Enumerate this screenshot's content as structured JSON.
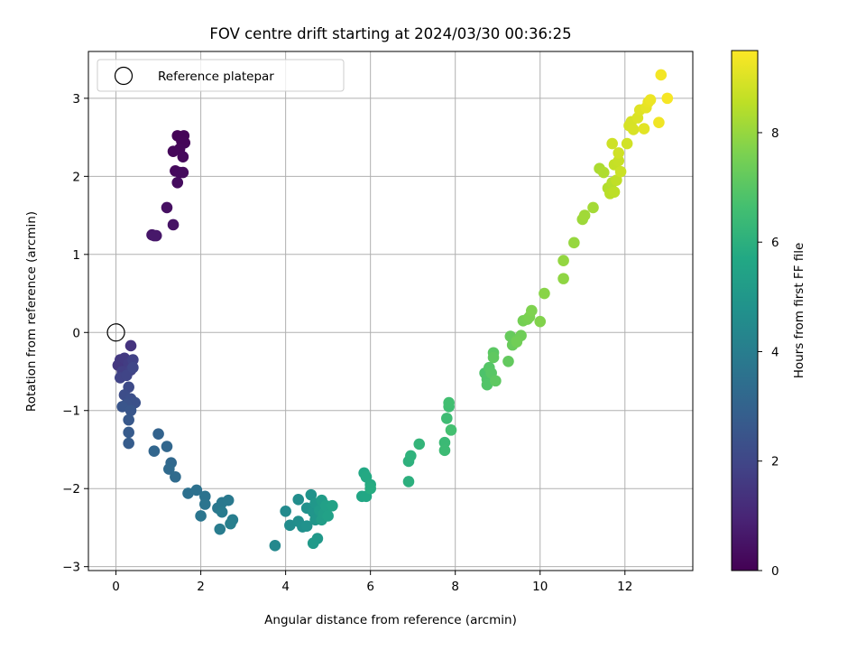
{
  "chart_data": {
    "type": "scatter",
    "title": "FOV centre drift starting at 2024/03/30 00:36:25",
    "xlabel": "Angular distance from reference (arcmin)",
    "ylabel": "Rotation from reference (arcmin)",
    "xlim": [
      -0.65,
      13.6
    ],
    "ylim": [
      -3.05,
      3.6
    ],
    "xticks": [
      0,
      2,
      4,
      6,
      8,
      10,
      12
    ],
    "yticks": [
      -3,
      -2,
      -1,
      0,
      1,
      2,
      3
    ],
    "grid": true,
    "legend": {
      "position": "top-left",
      "entries": [
        {
          "label": "Reference platepar",
          "marker": "open-circle",
          "x": 0,
          "y": 0
        }
      ]
    },
    "colorbar": {
      "label": "Hours from first FF file",
      "range": [
        0,
        9.5
      ],
      "ticks": [
        0,
        2,
        4,
        6,
        8
      ],
      "colormap": "viridis"
    },
    "series": [
      {
        "points": [
          [
            1.45,
            2.52,
            0.05
          ],
          [
            1.6,
            2.52,
            0.08
          ],
          [
            1.55,
            2.45,
            0.1
          ],
          [
            1.62,
            2.43,
            0.12
          ],
          [
            1.5,
            2.35,
            0.15
          ],
          [
            1.35,
            2.32,
            0.18
          ],
          [
            1.58,
            2.25,
            0.2
          ],
          [
            1.4,
            2.07,
            0.22
          ],
          [
            1.5,
            2.05,
            0.25
          ],
          [
            1.58,
            2.05,
            0.27
          ],
          [
            1.45,
            1.92,
            0.3
          ],
          [
            1.2,
            1.6,
            0.4
          ],
          [
            1.35,
            1.38,
            0.5
          ],
          [
            0.85,
            1.25,
            0.55
          ],
          [
            0.95,
            1.24,
            0.6
          ],
          [
            0.9,
            1.24,
            0.62
          ],
          [
            0.35,
            -0.17,
            1.4
          ],
          [
            0.05,
            -0.42,
            1.5
          ],
          [
            0.1,
            -0.35,
            1.55
          ],
          [
            0.2,
            -0.33,
            1.6
          ],
          [
            0.3,
            -0.4,
            1.7
          ],
          [
            0.15,
            -0.5,
            1.75
          ],
          [
            0.35,
            -0.48,
            1.8
          ],
          [
            0.4,
            -0.35,
            1.85
          ],
          [
            0.1,
            -0.58,
            1.9
          ],
          [
            0.25,
            -0.55,
            1.95
          ],
          [
            0.4,
            -0.45,
            2.0
          ],
          [
            0.3,
            -0.7,
            2.1
          ],
          [
            0.2,
            -0.8,
            2.2
          ],
          [
            0.35,
            -0.85,
            2.3
          ],
          [
            0.45,
            -0.9,
            2.35
          ],
          [
            0.25,
            -0.92,
            2.4
          ],
          [
            0.15,
            -0.95,
            2.5
          ],
          [
            0.35,
            -1.0,
            2.55
          ],
          [
            0.3,
            -1.12,
            2.6
          ],
          [
            0.3,
            -1.28,
            2.7
          ],
          [
            0.3,
            -1.42,
            2.75
          ],
          [
            1.0,
            -1.3,
            3.0
          ],
          [
            0.9,
            -1.52,
            3.1
          ],
          [
            1.2,
            -1.46,
            3.15
          ],
          [
            1.3,
            -1.67,
            3.2
          ],
          [
            1.25,
            -1.75,
            3.25
          ],
          [
            1.4,
            -1.85,
            3.3
          ],
          [
            1.7,
            -2.06,
            3.5
          ],
          [
            1.9,
            -2.02,
            3.55
          ],
          [
            2.1,
            -2.1,
            3.6
          ],
          [
            2.1,
            -2.2,
            3.65
          ],
          [
            2.0,
            -2.35,
            3.7
          ],
          [
            2.4,
            -2.25,
            3.75
          ],
          [
            2.5,
            -2.18,
            3.8
          ],
          [
            2.65,
            -2.15,
            3.85
          ],
          [
            2.5,
            -2.3,
            3.9
          ],
          [
            2.45,
            -2.52,
            3.95
          ],
          [
            2.75,
            -2.4,
            4.0
          ],
          [
            2.7,
            -2.45,
            4.05
          ],
          [
            3.75,
            -2.73,
            4.4
          ],
          [
            4.0,
            -2.29,
            4.5
          ],
          [
            4.1,
            -2.47,
            4.55
          ],
          [
            4.3,
            -2.14,
            4.6
          ],
          [
            4.3,
            -2.42,
            4.65
          ],
          [
            4.4,
            -2.49,
            4.7
          ],
          [
            4.5,
            -2.25,
            4.75
          ],
          [
            4.5,
            -2.48,
            4.8
          ],
          [
            4.6,
            -2.08,
            4.85
          ],
          [
            4.65,
            -2.3,
            4.9
          ],
          [
            4.7,
            -2.4,
            4.95
          ],
          [
            4.7,
            -2.19,
            5.0
          ],
          [
            4.75,
            -2.64,
            5.05
          ],
          [
            4.65,
            -2.7,
            5.1
          ],
          [
            4.8,
            -2.28,
            5.15
          ],
          [
            4.85,
            -2.15,
            5.2
          ],
          [
            4.85,
            -2.4,
            5.25
          ],
          [
            4.9,
            -2.32,
            5.3
          ],
          [
            4.95,
            -2.22,
            5.35
          ],
          [
            5.0,
            -2.35,
            5.4
          ],
          [
            5.1,
            -2.22,
            5.45
          ],
          [
            5.8,
            -2.1,
            5.6
          ],
          [
            5.9,
            -2.1,
            5.65
          ],
          [
            5.85,
            -1.8,
            5.7
          ],
          [
            5.9,
            -1.85,
            5.75
          ],
          [
            6.0,
            -1.95,
            5.8
          ],
          [
            6.0,
            -2.0,
            5.85
          ],
          [
            6.9,
            -1.91,
            6.0
          ],
          [
            6.9,
            -1.65,
            6.05
          ],
          [
            6.95,
            -1.58,
            6.1
          ],
          [
            7.15,
            -1.43,
            6.2
          ],
          [
            7.75,
            -1.41,
            6.4
          ],
          [
            7.75,
            -1.51,
            6.45
          ],
          [
            7.8,
            -1.1,
            6.5
          ],
          [
            7.85,
            -0.95,
            6.55
          ],
          [
            7.85,
            -0.9,
            6.6
          ],
          [
            7.9,
            -1.25,
            6.65
          ],
          [
            8.7,
            -0.52,
            6.8
          ],
          [
            8.75,
            -0.6,
            6.85
          ],
          [
            8.75,
            -0.67,
            6.9
          ],
          [
            8.8,
            -0.45,
            6.95
          ],
          [
            8.85,
            -0.52,
            7.0
          ],
          [
            8.9,
            -0.26,
            7.05
          ],
          [
            8.95,
            -0.62,
            7.1
          ],
          [
            8.9,
            -0.32,
            7.15
          ],
          [
            9.25,
            -0.37,
            7.2
          ],
          [
            9.3,
            -0.05,
            7.25
          ],
          [
            9.35,
            -0.16,
            7.3
          ],
          [
            9.45,
            -0.1,
            7.35
          ],
          [
            9.55,
            -0.04,
            7.4
          ],
          [
            9.45,
            -0.12,
            7.45
          ],
          [
            9.6,
            0.15,
            7.5
          ],
          [
            9.7,
            0.17,
            7.55
          ],
          [
            9.75,
            0.2,
            7.6
          ],
          [
            9.8,
            0.28,
            7.65
          ],
          [
            10.0,
            0.14,
            7.7
          ],
          [
            10.1,
            0.5,
            7.8
          ],
          [
            10.55,
            0.69,
            7.9
          ],
          [
            10.55,
            0.92,
            7.95
          ],
          [
            10.8,
            1.15,
            8.0
          ],
          [
            11.0,
            1.45,
            8.1
          ],
          [
            11.05,
            1.5,
            8.15
          ],
          [
            11.25,
            1.6,
            8.2
          ],
          [
            11.4,
            2.1,
            8.3
          ],
          [
            11.5,
            2.05,
            8.35
          ],
          [
            11.6,
            1.85,
            8.4
          ],
          [
            11.7,
            1.92,
            8.45
          ],
          [
            11.65,
            1.78,
            8.5
          ],
          [
            11.75,
            1.8,
            8.55
          ],
          [
            11.8,
            1.95,
            8.6
          ],
          [
            11.75,
            2.15,
            8.65
          ],
          [
            11.85,
            2.2,
            8.7
          ],
          [
            11.9,
            2.06,
            8.75
          ],
          [
            11.7,
            2.42,
            8.8
          ],
          [
            11.85,
            2.3,
            8.82
          ],
          [
            12.05,
            2.42,
            8.85
          ],
          [
            12.1,
            2.65,
            8.9
          ],
          [
            12.15,
            2.7,
            8.92
          ],
          [
            12.2,
            2.6,
            8.95
          ],
          [
            12.3,
            2.75,
            9.0
          ],
          [
            12.35,
            2.85,
            9.05
          ],
          [
            12.45,
            2.61,
            9.1
          ],
          [
            12.5,
            2.88,
            9.15
          ],
          [
            12.55,
            2.95,
            9.2
          ],
          [
            12.6,
            2.98,
            9.25
          ],
          [
            12.8,
            2.69,
            9.3
          ],
          [
            12.85,
            3.3,
            9.35
          ],
          [
            13.0,
            3.0,
            9.4
          ]
        ]
      }
    ]
  }
}
